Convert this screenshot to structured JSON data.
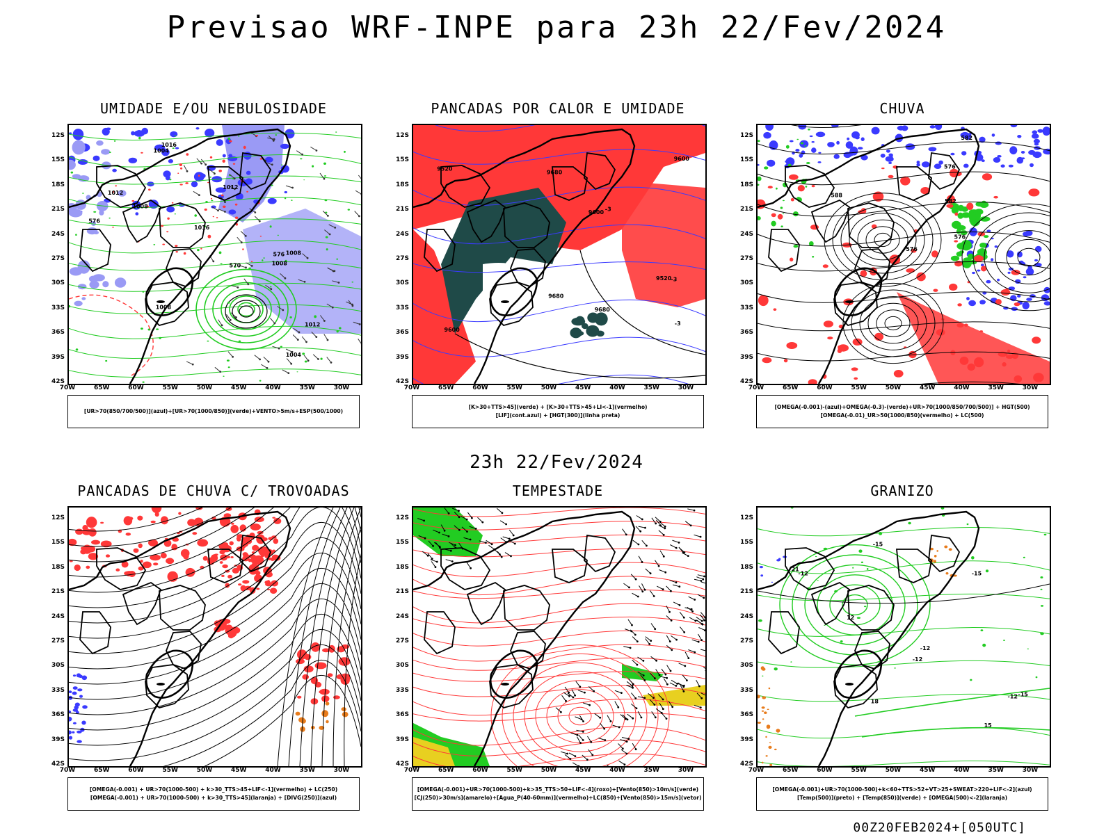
{
  "title": "Previsao WRF-INPE  para 23h 22/Fev/2024",
  "mid_title": "23h 22/Fev/2024",
  "footer": "00Z20FEB2024+[050UTC]",
  "axes": {
    "lat_labels": [
      "12S",
      "15S",
      "18S",
      "21S",
      "24S",
      "27S",
      "30S",
      "33S",
      "36S",
      "39S",
      "42S"
    ],
    "lon_labels": [
      "70W",
      "65W",
      "60W",
      "55W",
      "50W",
      "45W",
      "40W",
      "35W",
      "30W"
    ]
  },
  "colors": {
    "blue": "#3a3aff",
    "light_blue": "#9a9af5",
    "green": "#22cc22",
    "red": "#ff3838",
    "dark_teal": "#1f4a48",
    "orange": "#e87c1c",
    "yellow": "#e8d020"
  },
  "panels": [
    {
      "title": "UMIDADE E/OU NEBULOSIDADE",
      "legend": [
        "[UR>70(850/700/500)](azul)+[UR>70(1000/850)](verde)+VENTO>5m/s+ESP(500/1000)"
      ],
      "contour_labels": [
        "1008",
        "1012",
        "1016",
        "1004",
        "1008",
        "1012",
        "576",
        "570",
        "1012",
        "1008",
        "1016",
        "576",
        "1004",
        "1008"
      ]
    },
    {
      "title": "PANCADAS POR CALOR E UMIDADE",
      "legend": [
        "[K>30+TTS>45](verde) + [K>30+TTS>45+LI<-1](vermelho)",
        "[LIF](cont.azul) + [HGT(300)](linha preta)"
      ],
      "contour_labels": [
        "9680",
        "9680",
        "9600",
        "9600",
        "9520",
        "9600",
        "9520",
        "9680",
        "-3",
        "-3",
        "-3"
      ]
    },
    {
      "title": "CHUVA",
      "legend": [
        "[OMEGA(-0.001)-(azul)+OMEGA(-0.3)-(verde)+UR>70(1000/850/700/500)] + HGT(500)",
        "[OMEGA(-0.01)_UR>50(1000/850)(vermelho) + LC(500)"
      ],
      "contour_labels": [
        "582",
        "588",
        "582",
        "576",
        "576",
        "576"
      ]
    },
    {
      "title": "PANCADAS DE CHUVA C/ TROVOADAS",
      "legend": [
        "[OMEGA(-0.001) + UR>70(1000-500) + k>30_TTS>45+LIF<-1](vermelho) + LC(250)",
        "[OMEGA(-0.001) + UR>70(1000-500) + k>30_TTS>45](laranja) + [DIVG(250)](azul)"
      ],
      "contour_labels": []
    },
    {
      "title": "TEMPESTADE",
      "legend": [
        "[OMEGA(-0.001)+UR>70(1000-500)+k>35_TTS>50+LIF<-4](roxo)+[Vento(850)>10m/s](verde)",
        "[CJ(250)>30m/s](amarelo)+[Agua_P(40-60mm)](vermelho)+LC(850)+[Vento(850)>15m/s](vetor)"
      ],
      "contour_labels": []
    },
    {
      "title": "GRANIZO",
      "legend": [
        "[OMEGA(-0.001)+UR>70(1000-500)+k<60+TTS>52+VT>25+SWEAT>220+LIF<-2](azul)",
        "[Temp(500)](preto) + [Temp(850)](verde) + [OMEGA(500)<-2](laranja)"
      ],
      "contour_labels": [
        "-12",
        "-12",
        "-12",
        "-15",
        "-15",
        "-15",
        "-12",
        "21",
        "18",
        "15",
        "12"
      ]
    }
  ]
}
